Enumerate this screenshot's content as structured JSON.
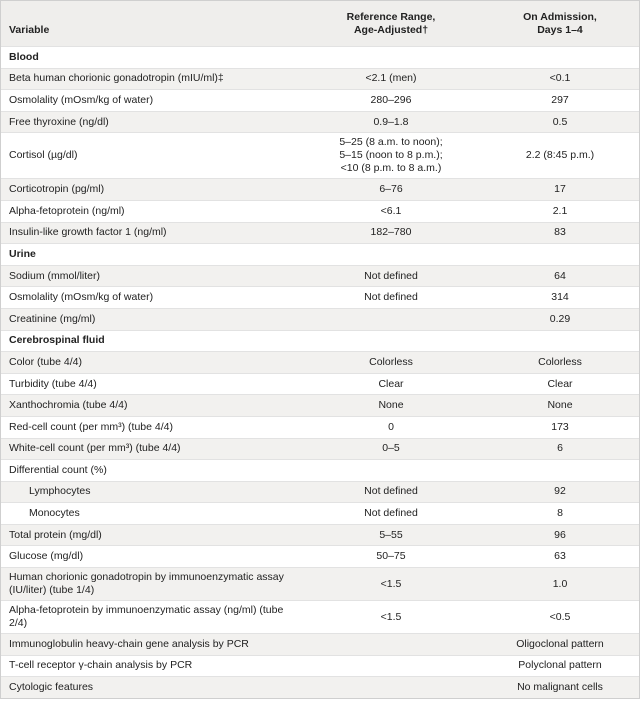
{
  "table": {
    "header": [
      "Variable",
      [
        "Reference Range,",
        "Age-Adjusted†"
      ],
      [
        "On Admission,",
        "Days 1–4"
      ]
    ],
    "sections": [
      {
        "title": "Blood",
        "rows": [
          {
            "cells": [
              "Beta human chorionic gonadotropin (mIU/ml)‡",
              "<2.1 (men)",
              "<0.1"
            ]
          },
          {
            "cells": [
              "Osmolality (mOsm/kg of water)",
              "280–296",
              "297"
            ]
          },
          {
            "cells": [
              "Free thyroxine (ng/dl)",
              "0.9–1.8",
              "0.5"
            ]
          },
          {
            "cells": [
              "Cortisol (µg/dl)",
              [
                "5–25 (8 a.m. to noon);",
                "5–15 (noon to 8 p.m.);",
                "<10 (8 p.m. to 8 a.m.)"
              ],
              "2.2 (8:45 p.m.)"
            ]
          },
          {
            "cells": [
              "Corticotropin (pg/ml)",
              "6–76",
              "17"
            ]
          },
          {
            "cells": [
              "Alpha-fetoprotein (ng/ml)",
              "<6.1",
              "2.1"
            ]
          },
          {
            "cells": [
              "Insulin-like growth factor 1 (ng/ml)",
              "182–780",
              "83"
            ]
          }
        ]
      },
      {
        "title": "Urine",
        "rows": [
          {
            "cells": [
              "Sodium (mmol/liter)",
              "Not defined",
              "64"
            ]
          },
          {
            "cells": [
              "Osmolality (mOsm/kg of water)",
              "Not defined",
              "314"
            ]
          },
          {
            "cells": [
              "Creatinine (mg/ml)",
              null,
              "0.29"
            ]
          }
        ]
      },
      {
        "title": "Cerebrospinal fluid",
        "rows": [
          {
            "cells": [
              "Color (tube 4/4)",
              "Colorless",
              "Colorless"
            ]
          },
          {
            "cells": [
              "Turbidity (tube 4/4)",
              "Clear",
              "Clear"
            ]
          },
          {
            "cells": [
              "Xanthochromia (tube 4/4)",
              "None",
              "None"
            ]
          },
          {
            "cells": [
              "Red-cell count (per mm³) (tube 4/4)",
              "0",
              "173"
            ]
          },
          {
            "cells": [
              "White-cell count (per mm³) (tube 4/4)",
              "0–5",
              "6"
            ]
          },
          {
            "cells": [
              "Differential count (%)",
              null,
              null
            ]
          },
          {
            "cells": [
              "Lymphocytes",
              "Not defined",
              "92"
            ],
            "indent": true
          },
          {
            "cells": [
              "Monocytes",
              "Not defined",
              "8"
            ],
            "indent": true
          },
          {
            "cells": [
              "Total protein (mg/dl)",
              "5–55",
              "96"
            ]
          },
          {
            "cells": [
              "Glucose (mg/dl)",
              "50–75",
              "63"
            ]
          },
          {
            "cells": [
              "Human chorionic gonadotropin by immunoenzymatic assay (IU/liter) (tube 1/4)",
              "<1.5",
              "1.0"
            ]
          },
          {
            "cells": [
              "Alpha-fetoprotein by immunoenzymatic assay (ng/ml) (tube 2/4)",
              "<1.5",
              "<0.5"
            ]
          },
          {
            "cells": [
              "Immunoglobulin heavy-chain gene analysis by PCR",
              null,
              "Oligoclonal pattern"
            ]
          },
          {
            "cells": [
              "T-cell receptor γ-chain analysis by PCR",
              null,
              "Polyclonal pattern"
            ]
          },
          {
            "cells": [
              "Cytologic features",
              null,
              "No malignant cells"
            ]
          }
        ]
      }
    ]
  }
}
